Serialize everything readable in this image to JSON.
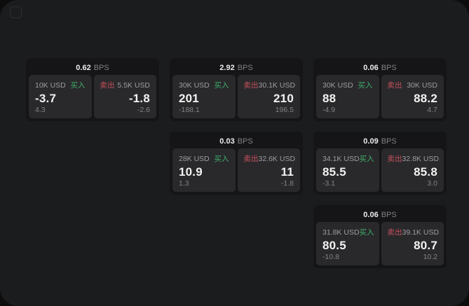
{
  "window": {
    "app_icon": "rounded-square-outline"
  },
  "labels": {
    "bps_unit": "BPS",
    "buy": "买入",
    "sell": "卖出"
  },
  "colors": {
    "buy-green": "#3fae6a",
    "sell-red": "#c8505d",
    "window-bg": "#1b1c1d",
    "card-bg": "#151517",
    "panel-bg": "#29292b"
  },
  "cards": [
    {
      "bps": "0.62",
      "buy": {
        "size": "10K USD",
        "value": "-3.7",
        "sub": "4.3"
      },
      "sell": {
        "size": "5.5K USD",
        "value": "-1.8",
        "sub": "-2.6"
      }
    },
    {
      "bps": "2.92",
      "buy": {
        "size": "30K USD",
        "value": "201",
        "sub": "-188.1"
      },
      "sell": {
        "size": "30.1K USD",
        "value": "210",
        "sub": "196.5"
      }
    },
    {
      "bps": "0.06",
      "buy": {
        "size": "30K USD",
        "value": "88",
        "sub": "-4.9"
      },
      "sell": {
        "size": "30K USD",
        "value": "88.2",
        "sub": "4.7"
      }
    },
    {
      "bps": "0.03",
      "buy": {
        "size": "28K USD",
        "value": "10.9",
        "sub": "1.3"
      },
      "sell": {
        "size": "32.6K USD",
        "value": "11",
        "sub": "-1.8"
      }
    },
    {
      "bps": "0.09",
      "buy": {
        "size": "34.1K USD",
        "value": "85.5",
        "sub": "-3.1"
      },
      "sell": {
        "size": "32.8K USD",
        "value": "85.8",
        "sub": "3.0"
      }
    },
    {
      "bps": "0.06",
      "buy": {
        "size": "31.8K USD",
        "value": "80.5",
        "sub": "-10.8"
      },
      "sell": {
        "size": "39.1K USD",
        "value": "80.7",
        "sub": "10.2"
      }
    }
  ]
}
